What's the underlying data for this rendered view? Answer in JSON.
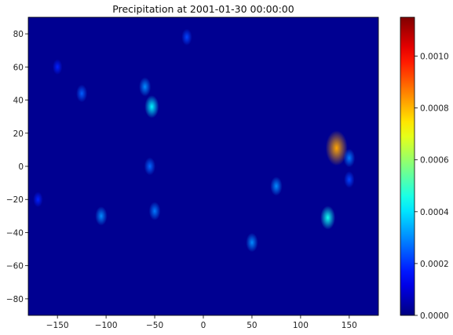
{
  "chart_data": {
    "type": "heatmap",
    "title": "Precipitation at 2001-01-30 00:00:00",
    "xlabel": "",
    "ylabel": "",
    "xlim": [
      -180,
      180
    ],
    "ylim": [
      -90,
      90
    ],
    "x_ticks": [
      -150,
      -100,
      -50,
      0,
      50,
      100,
      150
    ],
    "y_ticks": [
      -80,
      -60,
      -40,
      -20,
      0,
      20,
      40,
      60,
      80
    ],
    "colormap": "jet",
    "colorbar": {
      "range": [
        0.0,
        0.00115
      ],
      "ticks": [
        "0.0000",
        "0.0002",
        "0.0004",
        "0.0006",
        "0.0008",
        "0.0010"
      ],
      "tick_values": [
        0.0,
        0.0002,
        0.0004,
        0.0006,
        0.0008,
        0.001
      ]
    },
    "grid": false,
    "background_value": 2e-05,
    "features": [
      {
        "lon": 137,
        "lat": 11,
        "value": 0.00082
      },
      {
        "lon": 128,
        "lat": -31,
        "value": 0.00045
      },
      {
        "lon": -53,
        "lat": 36,
        "value": 0.00042
      },
      {
        "lon": -60,
        "lat": 48,
        "value": 0.0003
      },
      {
        "lon": -125,
        "lat": 44,
        "value": 0.00025
      },
      {
        "lon": -105,
        "lat": -30,
        "value": 0.0003
      },
      {
        "lon": -50,
        "lat": -27,
        "value": 0.00028
      },
      {
        "lon": 50,
        "lat": -46,
        "value": 0.0003
      },
      {
        "lon": 75,
        "lat": -12,
        "value": 0.0003
      },
      {
        "lon": 150,
        "lat": 5,
        "value": 0.00028
      },
      {
        "lon": -55,
        "lat": 0,
        "value": 0.00026
      },
      {
        "lon": -17,
        "lat": 78,
        "value": 0.00022
      },
      {
        "lon": -150,
        "lat": 60,
        "value": 0.00018
      },
      {
        "lon": 150,
        "lat": -8,
        "value": 0.00022
      },
      {
        "lon": -170,
        "lat": -20,
        "value": 0.00018
      }
    ]
  }
}
